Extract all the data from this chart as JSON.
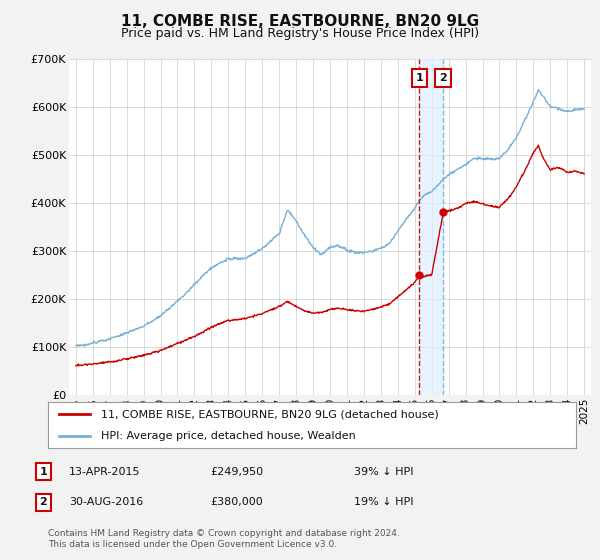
{
  "title": "11, COMBE RISE, EASTBOURNE, BN20 9LG",
  "subtitle": "Price paid vs. HM Land Registry's House Price Index (HPI)",
  "ylim": [
    0,
    700000
  ],
  "yticks": [
    0,
    100000,
    200000,
    300000,
    400000,
    500000,
    600000,
    700000
  ],
  "ytick_labels": [
    "£0",
    "£100K",
    "£200K",
    "£300K",
    "£400K",
    "£500K",
    "£600K",
    "£700K"
  ],
  "xlim_start": 1994.6,
  "xlim_end": 2025.4,
  "background_color": "#f2f2f2",
  "plot_bg_color": "#ffffff",
  "grid_color": "#cccccc",
  "line1_color": "#cc0000",
  "line2_color": "#7ab0d4",
  "vline1_x": 2015.28,
  "vline2_x": 2016.67,
  "vline1_color": "#cc0000",
  "vline2_color": "#7ab0d4",
  "shade_color": "#ddeeff",
  "marker1_year": 2015.28,
  "marker1_val": 249950,
  "marker2_year": 2016.67,
  "marker2_val": 380000,
  "legend_line1": "11, COMBE RISE, EASTBOURNE, BN20 9LG (detached house)",
  "legend_line2": "HPI: Average price, detached house, Wealden",
  "annot1_label": "1",
  "annot1_date": "13-APR-2015",
  "annot1_price": "£249,950",
  "annot1_hpi": "39% ↓ HPI",
  "annot2_label": "2",
  "annot2_date": "30-AUG-2016",
  "annot2_price": "£380,000",
  "annot2_hpi": "19% ↓ HPI",
  "footer": "Contains HM Land Registry data © Crown copyright and database right 2024.\nThis data is licensed under the Open Government Licence v3.0.",
  "title_fontsize": 11,
  "subtitle_fontsize": 9,
  "tick_fontsize": 8,
  "legend_fontsize": 8,
  "annot_fontsize": 8,
  "footer_fontsize": 6.5
}
